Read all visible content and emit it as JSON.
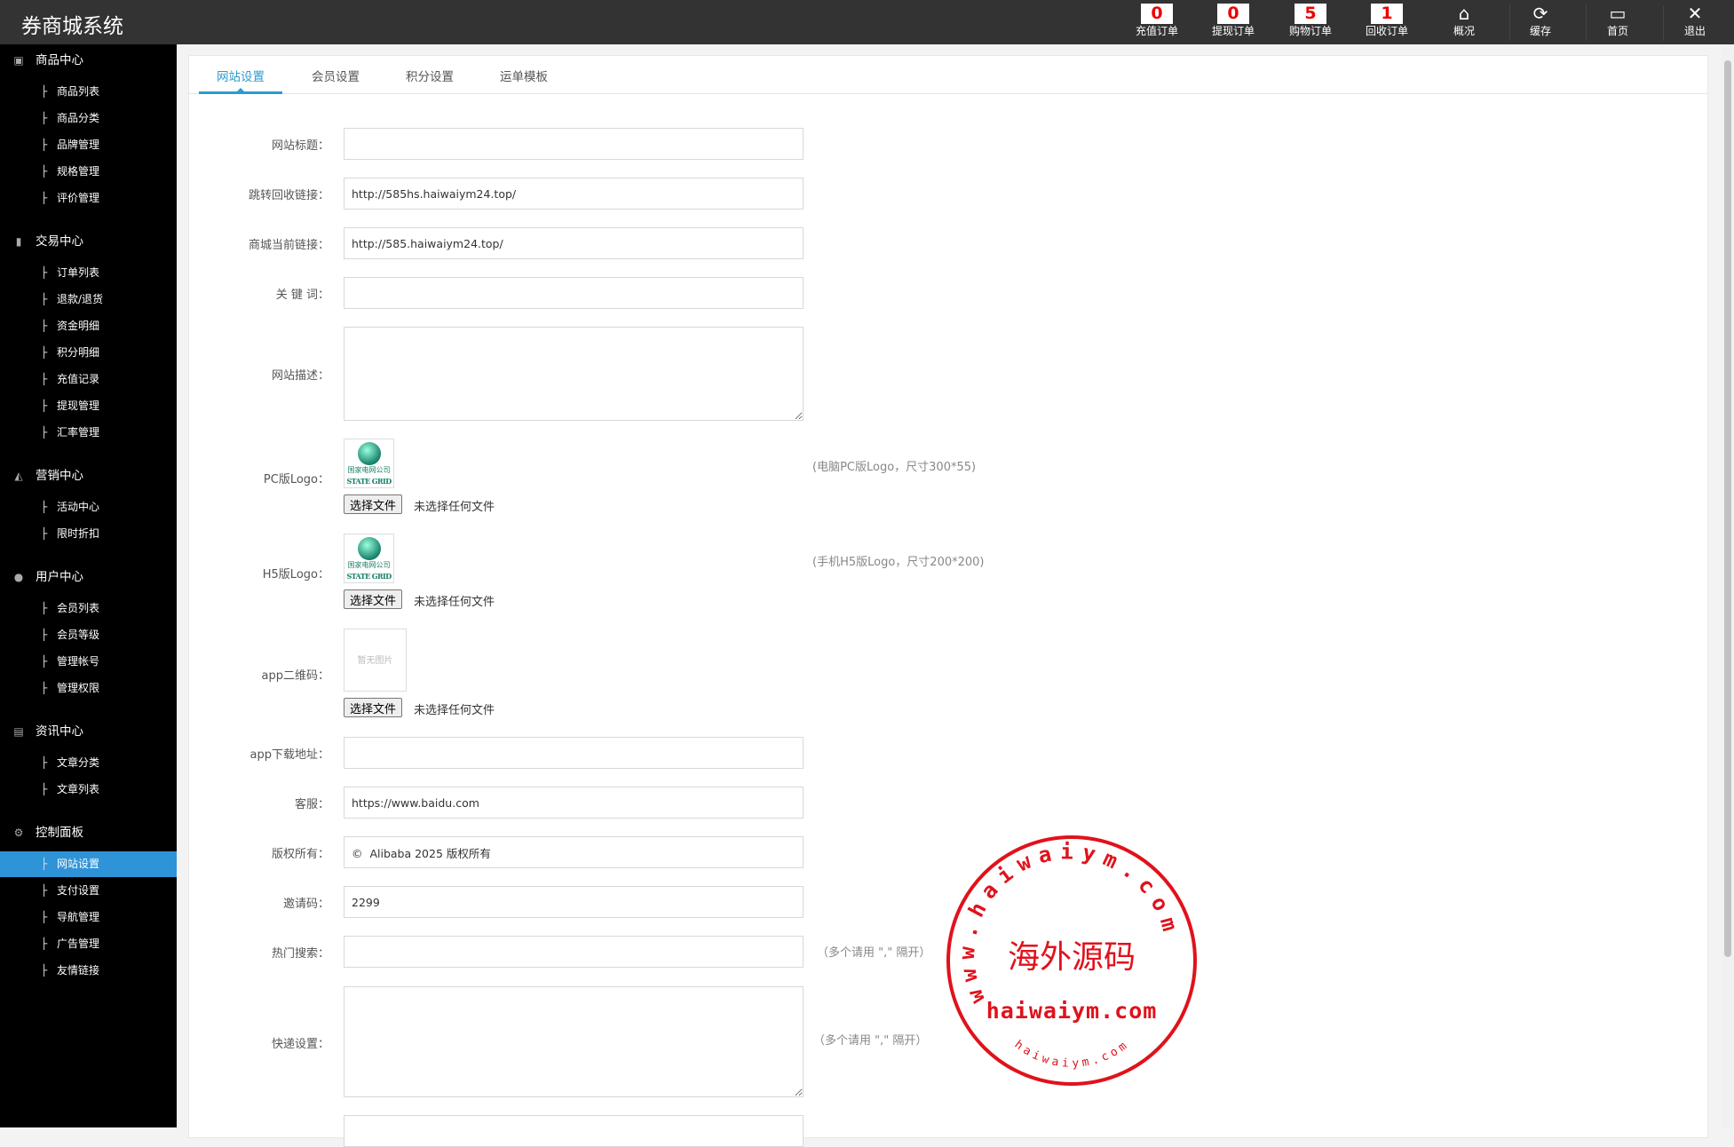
{
  "header": {
    "title": "券商城系统",
    "counters": [
      {
        "value": "0",
        "label": "充值订单"
      },
      {
        "value": "0",
        "label": "提现订单"
      },
      {
        "value": "5",
        "label": "购物订单"
      },
      {
        "value": "1",
        "label": "回收订单"
      }
    ],
    "nav": [
      {
        "icon": "home-icon",
        "label": "概况"
      },
      {
        "icon": "refresh-icon",
        "label": "缓存"
      },
      {
        "icon": "monitor-icon",
        "label": "首页"
      },
      {
        "icon": "close-icon",
        "label": "退出"
      }
    ]
  },
  "sidebar": {
    "sections": [
      {
        "label": "商品中心",
        "icon": "bag-icon",
        "items": [
          "商品列表",
          "商品分类",
          "品牌管理",
          "规格管理",
          "评价管理"
        ]
      },
      {
        "label": "交易中心",
        "icon": "bar-chart-icon",
        "items": [
          "订单列表",
          "退款/退货",
          "资金明细",
          "积分明细",
          "充值记录",
          "提现管理",
          "汇率管理"
        ]
      },
      {
        "label": "营销中心",
        "icon": "area-chart-icon",
        "items": [
          "活动中心",
          "限时折扣"
        ]
      },
      {
        "label": "用户中心",
        "icon": "user-icon",
        "items": [
          "会员列表",
          "会员等级",
          "管理帐号",
          "管理权限"
        ]
      },
      {
        "label": "资讯中心",
        "icon": "document-icon",
        "items": [
          "文章分类",
          "文章列表"
        ]
      },
      {
        "label": "控制面板",
        "icon": "gear-icon",
        "items": [
          "网站设置",
          "支付设置",
          "导航管理",
          "广告管理",
          "友情链接"
        ]
      }
    ],
    "active": "网站设置",
    "active_color": "#2f93d8"
  },
  "tabs": [
    "网站设置",
    "会员设置",
    "积分设置",
    "运单模板"
  ],
  "form": {
    "site_title": {
      "label": "网站标题：",
      "value": ""
    },
    "redirect_url": {
      "label": "跳转回收链接：",
      "value": "http://585hs.haiwaiym24.top/"
    },
    "mall_url": {
      "label": "商城当前链接：",
      "value": "http://585.haiwaiym24.top/"
    },
    "keywords": {
      "label": "关 键 词：",
      "value": ""
    },
    "description": {
      "label": "网站描述：",
      "value": ""
    },
    "pc_logo": {
      "label": "PC版Logo：",
      "hint": "(电脑PC版Logo，尺寸300*55)",
      "image_text": [
        "国家电网公司",
        "STATE GRID"
      ]
    },
    "h5_logo": {
      "label": "H5版Logo：",
      "hint": "(手机H5版Logo，尺寸200*200)",
      "image_text": [
        "国家电网公司",
        "STATE GRID"
      ]
    },
    "app_qr": {
      "label": "app二维码：",
      "placeholder_text": "暂无图片"
    },
    "file_button": "选择文件",
    "no_file": "未选择任何文件",
    "app_download": {
      "label": "app下载地址：",
      "value": ""
    },
    "service": {
      "label": "客服：",
      "value": "https://www.baidu.com"
    },
    "copyright": {
      "label": "版权所有：",
      "value": "©  Alibaba 2025 版权所有"
    },
    "invite_code": {
      "label": "邀请码：",
      "value": "2299"
    },
    "hot_search": {
      "label": "热门搜索：",
      "value": "",
      "hint": "（多个请用 \",\" 隔开）"
    },
    "express": {
      "label": "快递设置：",
      "value": "",
      "hint": "（多个请用 \",\" 隔开）"
    }
  },
  "watermark": {
    "ring_text": "www.haiwaiym.com",
    "center": "海外源码",
    "domain": "haiwaiym.com",
    "bottom": "haiwaiym.com",
    "color": "#e0121b"
  }
}
